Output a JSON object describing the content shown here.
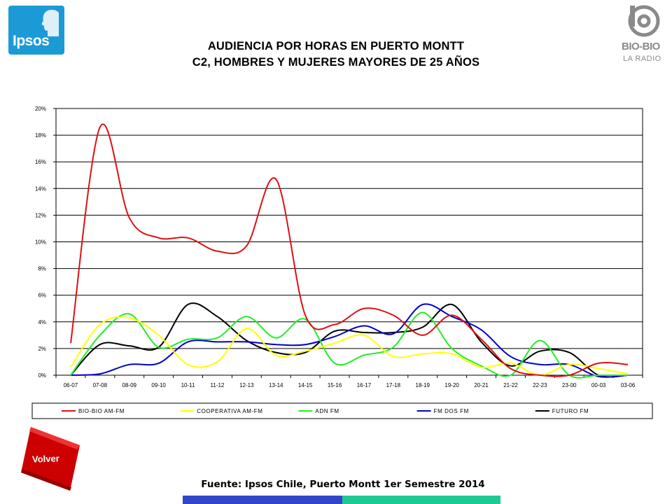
{
  "logos": {
    "ipsos": "Ipsos",
    "biobio_name": "BIO-BIO",
    "biobio_sub": "LA RADIO"
  },
  "title_line1": "AUDIENCIA POR HORAS EN PUERTO MONTT",
  "title_line2": "C2, HOMBRES Y MUJERES MAYORES DE 25 AÑOS",
  "volver_label": "Volver",
  "source": "Fuente: Ipsos Chile, Puerto Montt 1er Semestre 2014",
  "colors": {
    "bio_bio": "#dd1111",
    "cooperativa": "#ffff00",
    "adn": "#22ee22",
    "fm_dos": "#0000cc",
    "futuro": "#000000",
    "volver": "#dd1111",
    "footer_blue": "#3344cc",
    "footer_teal": "#1fc994"
  },
  "chart_data": {
    "type": "line",
    "title": "AUDIENCIA POR HORAS EN PUERTO MONTT",
    "subtitle": "C2, HOMBRES Y MUJERES MAYORES DE 25 AÑOS",
    "categories": [
      "06-07",
      "07-08",
      "08-09",
      "09-10",
      "10-11",
      "11-12",
      "12-13",
      "13-14",
      "14-15",
      "15-16",
      "16-17",
      "17-18",
      "18-19",
      "19-20",
      "20-21",
      "21-22",
      "22-23",
      "23-00",
      "00-03",
      "03-06"
    ],
    "yticks": [
      "0%",
      "2%",
      "4%",
      "6%",
      "8%",
      "10%",
      "12%",
      "14%",
      "16%",
      "18%",
      "20%"
    ],
    "ylim": [
      0,
      20
    ],
    "grid": true,
    "legend_position": "bottom",
    "series": [
      {
        "name": "BIO-BIO AM-FM",
        "color": "#dd1111",
        "values": [
          2.4,
          18.6,
          11.8,
          10.3,
          10.3,
          9.3,
          9.7,
          14.7,
          4.5,
          3.8,
          5.0,
          4.5,
          3.0,
          4.5,
          2.7,
          0.5,
          0.0,
          0.0,
          0.9,
          0.8
        ]
      },
      {
        "name": "COOPERATIVA AM-FM",
        "color": "#ffff00",
        "values": [
          0.6,
          3.8,
          4.3,
          3.0,
          0.8,
          1.0,
          3.5,
          1.5,
          1.8,
          2.4,
          3.0,
          1.4,
          1.6,
          1.6,
          0.6,
          0.9,
          0.0,
          0.8,
          0.5,
          0.1
        ]
      },
      {
        "name": "ADN FM",
        "color": "#22ee22",
        "values": [
          0.0,
          3.0,
          4.6,
          2.1,
          2.7,
          2.8,
          4.4,
          2.8,
          4.2,
          0.9,
          1.5,
          2.1,
          4.7,
          2.0,
          0.7,
          0.0,
          2.6,
          0.0,
          0.0,
          0.0
        ]
      },
      {
        "name": "FM DOS FM",
        "color": "#0000cc",
        "values": [
          0.0,
          0.1,
          0.8,
          0.9,
          2.5,
          2.5,
          2.5,
          2.3,
          2.3,
          2.9,
          3.7,
          3.1,
          5.3,
          4.4,
          3.4,
          1.4,
          0.8,
          0.8,
          -0.1,
          0.0
        ]
      },
      {
        "name": "FUTURO FM",
        "color": "#000000",
        "values": [
          0.0,
          2.3,
          2.2,
          2.1,
          5.3,
          4.4,
          2.6,
          1.7,
          1.7,
          3.3,
          3.2,
          3.2,
          3.6,
          5.3,
          2.5,
          0.7,
          1.8,
          1.7,
          0.0,
          0.0
        ]
      }
    ]
  }
}
